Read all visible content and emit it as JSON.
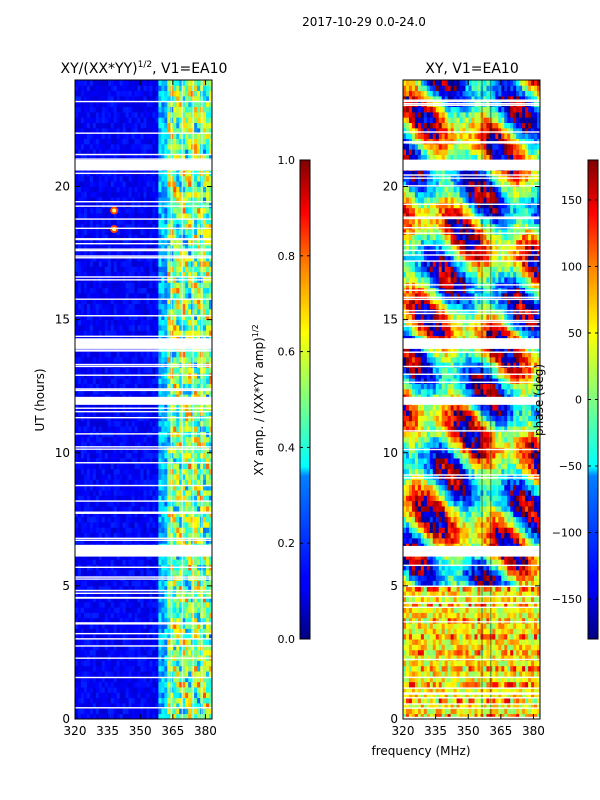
{
  "figure": {
    "suptitle": "2017-10-29 0.0-24.0",
    "shared_xlabel": "frequency (MHz)"
  },
  "chart_data": [
    {
      "type": "heatmap",
      "title": "XY/(XX*YY)",
      "title_exponent": "1/2",
      "title_suffix": ", V1=EA10",
      "xlabel": "",
      "ylabel": "UT (hours)",
      "xlim": [
        320,
        383
      ],
      "ylim": [
        0,
        24
      ],
      "xticks": [
        "320",
        "335",
        "350",
        "365",
        "380"
      ],
      "xtick_values": [
        320,
        335,
        350,
        365,
        380
      ],
      "yticks": [
        "0",
        "5",
        "10",
        "15",
        "20"
      ],
      "ytick_values": [
        0,
        5,
        10,
        15,
        20
      ],
      "colormap": "jet",
      "colorbar": {
        "label": "XY amp. / (XX*YY amp)",
        "label_exponent": "1/2",
        "range": [
          0.0,
          1.0
        ],
        "ticks": [
          "0.0",
          "0.2",
          "0.4",
          "0.6",
          "0.8",
          "1.0"
        ],
        "tick_values": [
          0.0,
          0.2,
          0.4,
          0.6,
          0.8,
          1.0
        ]
      },
      "flagged_time_ranges_hours": [
        [
          6.1,
          6.5
        ],
        [
          11.8,
          12.1
        ],
        [
          13.9,
          14.3
        ],
        [
          20.6,
          21.0
        ]
      ],
      "features": {
        "low_amplitude_band_mhz": [
          320,
          360
        ],
        "high_amplitude_band_mhz": [
          362,
          383
        ],
        "bright_spots": [
          {
            "freq_mhz": 338,
            "hours": 18.4
          },
          {
            "freq_mhz": 338,
            "hours": 19.1
          }
        ]
      }
    },
    {
      "type": "heatmap",
      "title": "XY, V1=EA10",
      "xlabel": "",
      "ylabel": "",
      "xlim": [
        320,
        383
      ],
      "ylim": [
        0,
        24
      ],
      "xticks": [
        "320",
        "335",
        "350",
        "365",
        "380"
      ],
      "xtick_values": [
        320,
        335,
        350,
        365,
        380
      ],
      "yticks": [
        "0",
        "5",
        "10",
        "15",
        "20"
      ],
      "ytick_values": [
        0,
        5,
        10,
        15,
        20
      ],
      "colormap": "jet",
      "colorbar": {
        "label": "phase (deg)",
        "range": [
          -180,
          180
        ],
        "ticks": [
          "−150",
          "−100",
          "−50",
          "0",
          "50",
          "100",
          "150"
        ],
        "tick_values": [
          -150,
          -100,
          -50,
          0,
          50,
          100,
          150
        ]
      },
      "flagged_time_ranges_hours": [
        [
          6.1,
          6.5
        ],
        [
          11.8,
          12.1
        ],
        [
          13.9,
          14.3
        ],
        [
          20.6,
          21.0
        ]
      ]
    }
  ]
}
